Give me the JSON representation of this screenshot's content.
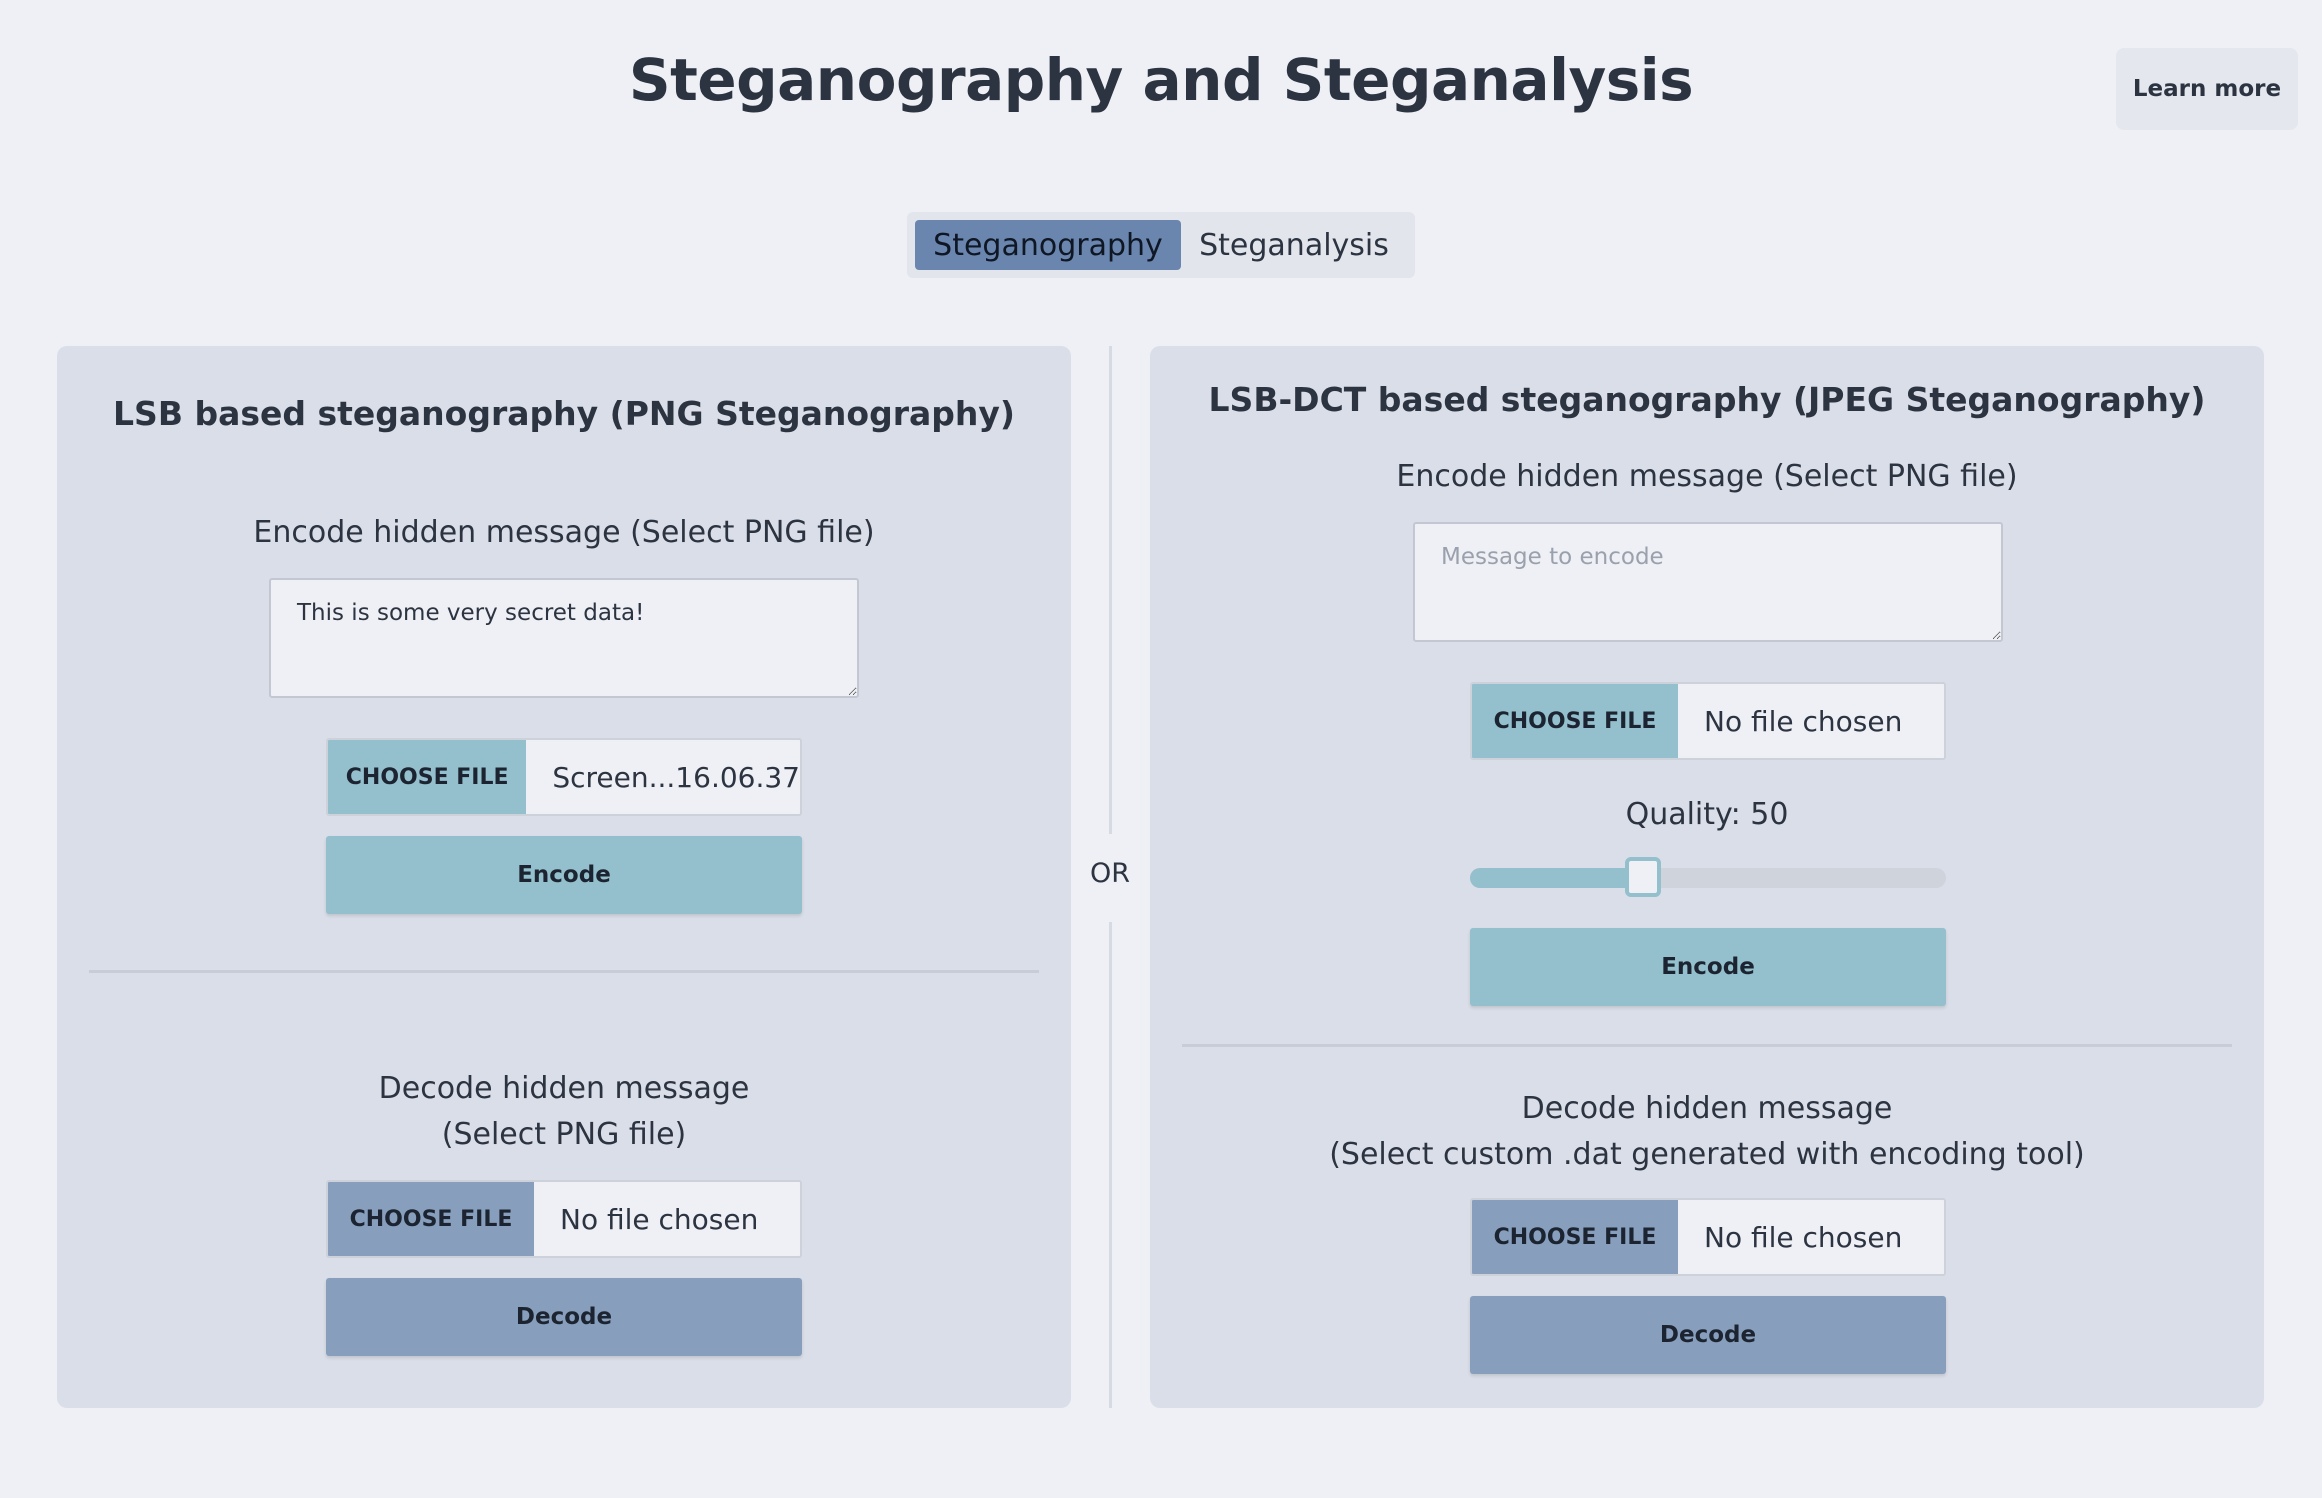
{
  "header": {
    "title": "Steganography and Steganalysis",
    "learn_more_label": "Learn more"
  },
  "tabs": [
    {
      "label": "Steganography",
      "active": true
    },
    {
      "label": "Steganalysis",
      "active": false
    }
  ],
  "separator_label": "OR",
  "png_panel": {
    "title": "LSB based steganography (PNG Steganography)",
    "encode": {
      "heading": "Encode hidden message (Select PNG file)",
      "message_value": "This is some very secret data!",
      "message_placeholder": "Message to encode",
      "choose_file_label": "CHOOSE FILE",
      "file_name": "Screen...16.06.37",
      "button_label": "Encode"
    },
    "decode": {
      "heading_line1": "Decode hidden message",
      "heading_line2": "(Select PNG file)",
      "choose_file_label": "CHOOSE FILE",
      "file_name": "No file chosen",
      "button_label": "Decode"
    }
  },
  "jpeg_panel": {
    "title": "LSB-DCT based steganography (JPEG Steganography)",
    "encode": {
      "heading": "Encode hidden message (Select PNG file)",
      "message_value": "",
      "message_placeholder": "Message to encode",
      "choose_file_label": "CHOOSE FILE",
      "file_name": "No file chosen",
      "quality_label": "Quality: 50",
      "quality_value": 50,
      "quality_slider_fraction": 0.35,
      "button_label": "Encode"
    },
    "decode": {
      "heading_line1": "Decode hidden message",
      "heading_line2": "(Select custom .dat generated with encoding tool)",
      "choose_file_label": "CHOOSE FILE",
      "file_name": "No file chosen",
      "button_label": "Decode"
    }
  },
  "colors": {
    "background": "#eef0f5",
    "panel": "#dadee8",
    "active_tab": "#6a86ae",
    "encode_accent": "#94bfcc",
    "decode_accent": "#879fbc",
    "text": "#2d3441"
  }
}
